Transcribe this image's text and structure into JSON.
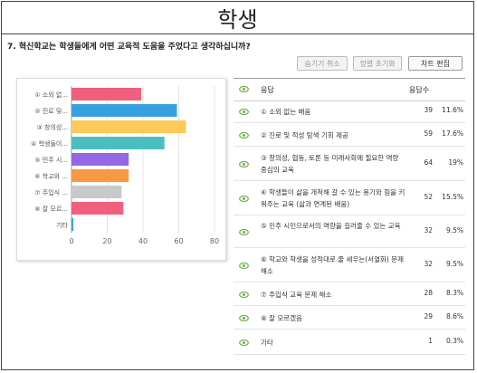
{
  "title": "학생",
  "question": "7. 혁신학교는 학생들에게 어떤 교육적 도움을 주었다고 생각하십니까?",
  "buttons": {
    "hide_cancel": "숨기기 취소",
    "sort_reset": "정렬 초기화",
    "chart_edit": "차트 편집"
  },
  "table": {
    "col_answer": "응답",
    "col_count": "응답수",
    "rows": [
      {
        "label": "① 소외 없는 배움",
        "count": "39",
        "pct": "11.6%"
      },
      {
        "label": "② 진로 및 적성 탐색 기회 제공",
        "count": "59",
        "pct": "17.6%"
      },
      {
        "label": "③ 창의성, 협동, 토론 등 미래사회에 필요한 역량 중심의 교육",
        "count": "64",
        "pct": "19%"
      },
      {
        "label": "④ 학생들이 삶을 개척해 갈 수 있는 용기와 힘을 키워주는 교육 (삶과 연계된 배움)",
        "count": "52",
        "pct": "15.5%"
      },
      {
        "label": "⑤ 민주 시민으로서의 역량을 길러줄 수 있는 교육",
        "count": "32",
        "pct": "9.5%"
      },
      {
        "label": "⑥ 학교와 학생을 성적대로 줄 세우는(서열화) 문제 해소",
        "count": "32",
        "pct": "9.5%"
      },
      {
        "label": "⑦ 주입식 교육 문제 해소",
        "count": "28",
        "pct": "8.3%"
      },
      {
        "label": "⑧ 잘 모르겠음",
        "count": "29",
        "pct": "8.6%"
      },
      {
        "label": "기타",
        "count": "1",
        "pct": "0.3%"
      }
    ]
  },
  "colors": {
    "eye": "#6fae4f",
    "bars": [
      "#f0607c",
      "#37a0e0",
      "#fcc95a",
      "#4bbfbf",
      "#9467e3",
      "#f99842",
      "#c9c9cb",
      "#f0607c",
      "#37a0e0"
    ]
  },
  "chart_data": {
    "type": "bar",
    "orientation": "horizontal",
    "categories": [
      "① 소외 없...",
      "② 진로 및...",
      "③ 창의성...",
      "④ 학생들이...",
      "⑤ 민주 시...",
      "⑥ 학교와 ...",
      "⑦ 주입식 ...",
      "⑧ 잘 모르...",
      "기타"
    ],
    "values": [
      39,
      59,
      64,
      52,
      32,
      32,
      28,
      29,
      1
    ],
    "xlim": [
      0,
      80
    ],
    "xticks": [
      0,
      20,
      40,
      60,
      80
    ],
    "grid": true,
    "legend": "none"
  }
}
